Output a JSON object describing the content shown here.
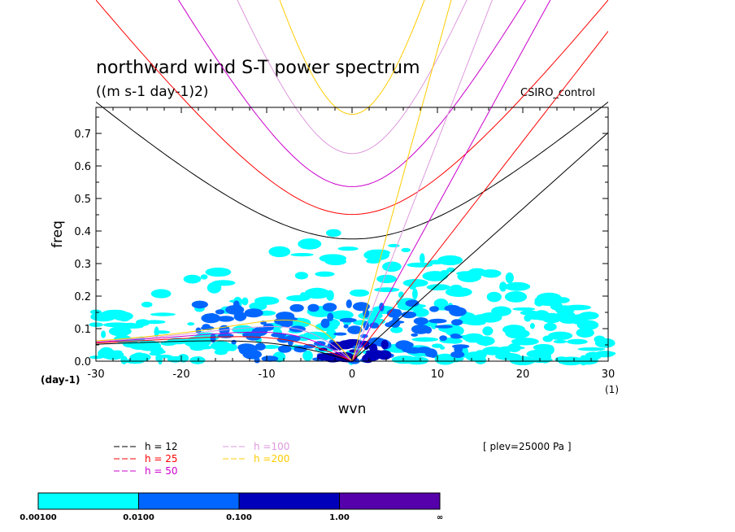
{
  "chart_data": {
    "type": "heatmap",
    "title": "northward wind S-T power spectrum",
    "subtitle": "((m s-1 day-1)2)",
    "model_label": "CSIRO_control",
    "xlabel": "wvn",
    "ylabel": "freq",
    "x_unit": "(1)",
    "y_unit": "(day-1)",
    "xlim": [
      -30,
      30
    ],
    "ylim": [
      0,
      0.78
    ],
    "x_ticks": [
      "-30",
      "-20",
      "-10",
      "0",
      "10",
      "20",
      "30"
    ],
    "y_ticks": [
      "0.0",
      "0.1",
      "0.2",
      "0.3",
      "0.4",
      "0.5",
      "0.6",
      "0.7"
    ],
    "plev_note": "[ plev=25000 Pa ]",
    "colorbar": {
      "bounds": [
        "0.00100",
        "0.0100",
        "0.100",
        "1.00",
        "∞"
      ],
      "colors": [
        "#00ffff",
        "#0066ff",
        "#0000bb",
        "#5500aa"
      ]
    },
    "dispersion_curves": [
      {
        "label": "h = 12",
        "equivalent_depth": 12,
        "color": "#000000"
      },
      {
        "label": "h = 25",
        "equivalent_depth": 25,
        "color": "#ff0000"
      },
      {
        "label": "h = 50",
        "equivalent_depth": 50,
        "color": "#cc00cc"
      },
      {
        "label": "h =100",
        "equivalent_depth": 100,
        "color": "#dd99dd"
      },
      {
        "label": "h =200",
        "equivalent_depth": 200,
        "color": "#ffcc00"
      }
    ],
    "contour_regions": [
      {
        "level": "0.00100",
        "x_range": [
          -30,
          30
        ],
        "y_range": [
          0,
          0.42
        ]
      },
      {
        "level": "0.0100",
        "x_range": [
          -18,
          13
        ],
        "y_range": [
          0,
          0.18
        ]
      },
      {
        "level": "0.100",
        "x_range": [
          -4,
          4
        ],
        "y_range": [
          0,
          0.06
        ]
      }
    ]
  }
}
